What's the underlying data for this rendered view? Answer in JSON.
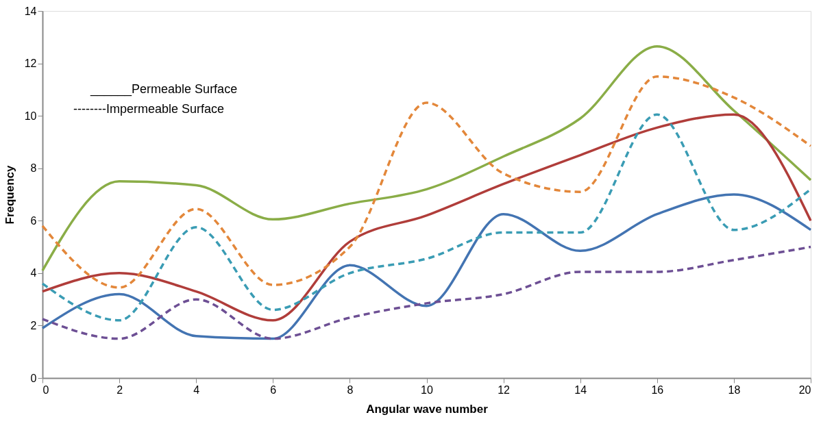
{
  "chart_data": {
    "type": "line",
    "xlabel": "Angular wave number",
    "ylabel": "Frequency",
    "x": [
      0,
      2,
      4,
      6,
      8,
      10,
      12,
      14,
      16,
      18,
      20
    ],
    "xlim": [
      0,
      20
    ],
    "xticks": [
      0,
      2,
      4,
      6,
      8,
      10,
      12,
      14,
      16,
      18,
      20
    ],
    "ylim": [
      0,
      14
    ],
    "yticks": [
      0,
      2,
      4,
      6,
      8,
      10,
      12,
      14
    ],
    "grid": false,
    "marker": "none",
    "annotations": [
      "______Permeable Surface",
      "--------Impermeable Surface"
    ],
    "series": [
      {
        "color": "#8aad47",
        "line_style": "solid",
        "values": [
          4.1,
          7.5,
          7.35,
          6.05,
          6.65,
          7.2,
          8.45,
          9.9,
          12.65,
          10.2,
          7.55
        ]
      },
      {
        "color": "#b03d3a",
        "line_style": "solid",
        "values": [
          3.3,
          4.0,
          3.3,
          2.2,
          5.2,
          6.2,
          7.4,
          8.5,
          9.55,
          10.05,
          6.0
        ]
      },
      {
        "color": "#4374b2",
        "line_style": "solid",
        "values": [
          1.9,
          3.2,
          1.6,
          1.5,
          4.3,
          2.75,
          6.25,
          4.85,
          6.25,
          7.0,
          5.65
        ]
      },
      {
        "color": "#e3873a",
        "line_style": "dashed",
        "values": [
          5.8,
          3.45,
          6.45,
          3.55,
          5.0,
          10.5,
          7.8,
          7.1,
          11.5,
          10.7,
          8.85
        ]
      },
      {
        "color": "#3a9cb4",
        "line_style": "dashed",
        "values": [
          3.6,
          2.2,
          5.75,
          2.6,
          4.0,
          4.55,
          5.55,
          5.55,
          10.05,
          5.65,
          7.2
        ]
      },
      {
        "color": "#6d4f94",
        "line_style": "dashed",
        "values": [
          2.25,
          1.5,
          3.0,
          1.5,
          2.3,
          2.85,
          3.2,
          4.05,
          4.05,
          4.5,
          5.0
        ]
      }
    ]
  }
}
